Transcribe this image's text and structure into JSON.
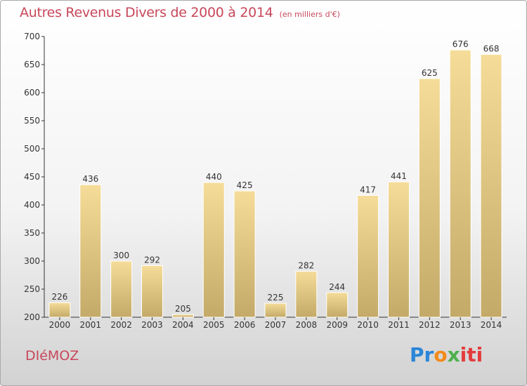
{
  "header": {
    "title": "Autres Revenus Divers de 2000 à 2014",
    "unit": "(en milliers d'€)"
  },
  "footer": {
    "commune": "DIéMOZ",
    "logo": "Proxiti"
  },
  "colors": {
    "title": "#c8475a",
    "bar_top": "#f5dc98",
    "bar_bottom": "#c4aa68",
    "axis": "#333333"
  },
  "chart_data": {
    "type": "bar",
    "title": "Autres Revenus Divers de 2000 à 2014",
    "categories": [
      "2000",
      "2001",
      "2002",
      "2003",
      "2004",
      "2005",
      "2006",
      "2007",
      "2008",
      "2009",
      "2010",
      "2011",
      "2012",
      "2013",
      "2014"
    ],
    "values": [
      226,
      436,
      300,
      292,
      205,
      440,
      425,
      225,
      282,
      244,
      417,
      441,
      625,
      676,
      668
    ],
    "ylim": [
      200,
      700
    ],
    "yticks": [
      200,
      250,
      300,
      350,
      400,
      450,
      500,
      550,
      600,
      650,
      700
    ],
    "grid": false,
    "data_labels": true
  }
}
